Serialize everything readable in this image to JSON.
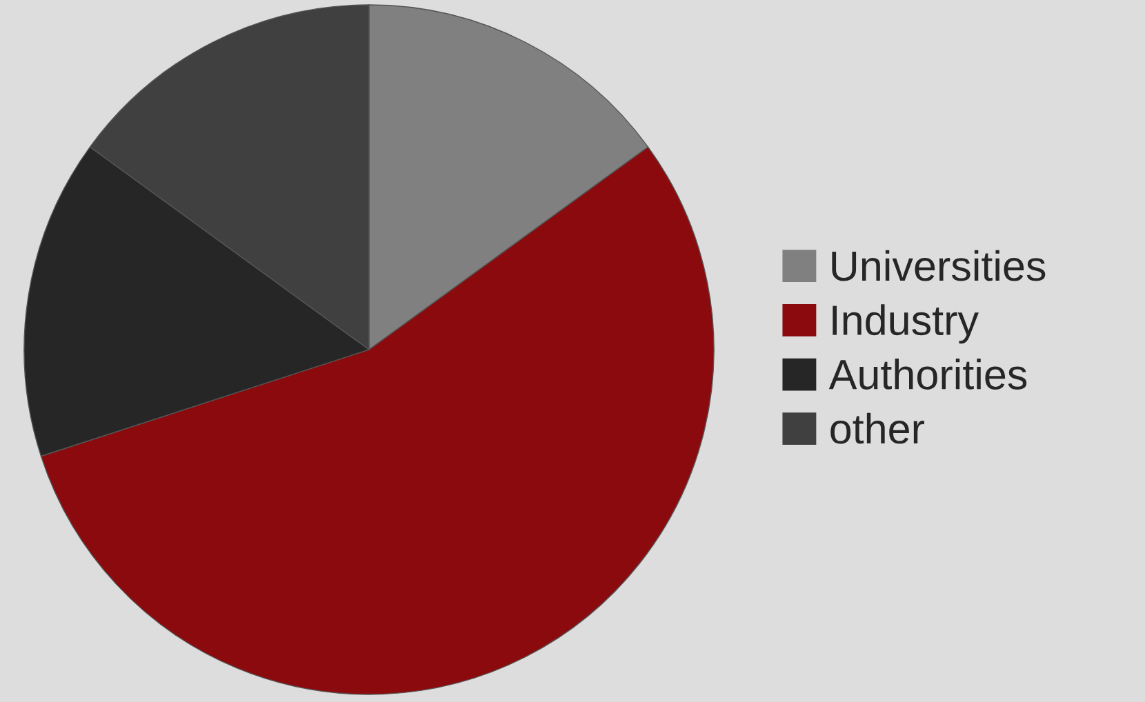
{
  "chart_data": {
    "type": "pie",
    "categories": [
      "Universities",
      "Industry",
      "Authorities",
      "other"
    ],
    "values": [
      15,
      55,
      15,
      15
    ],
    "colors": [
      "#808080",
      "#8b0a0e",
      "#262626",
      "#404040"
    ],
    "legend": "right"
  }
}
